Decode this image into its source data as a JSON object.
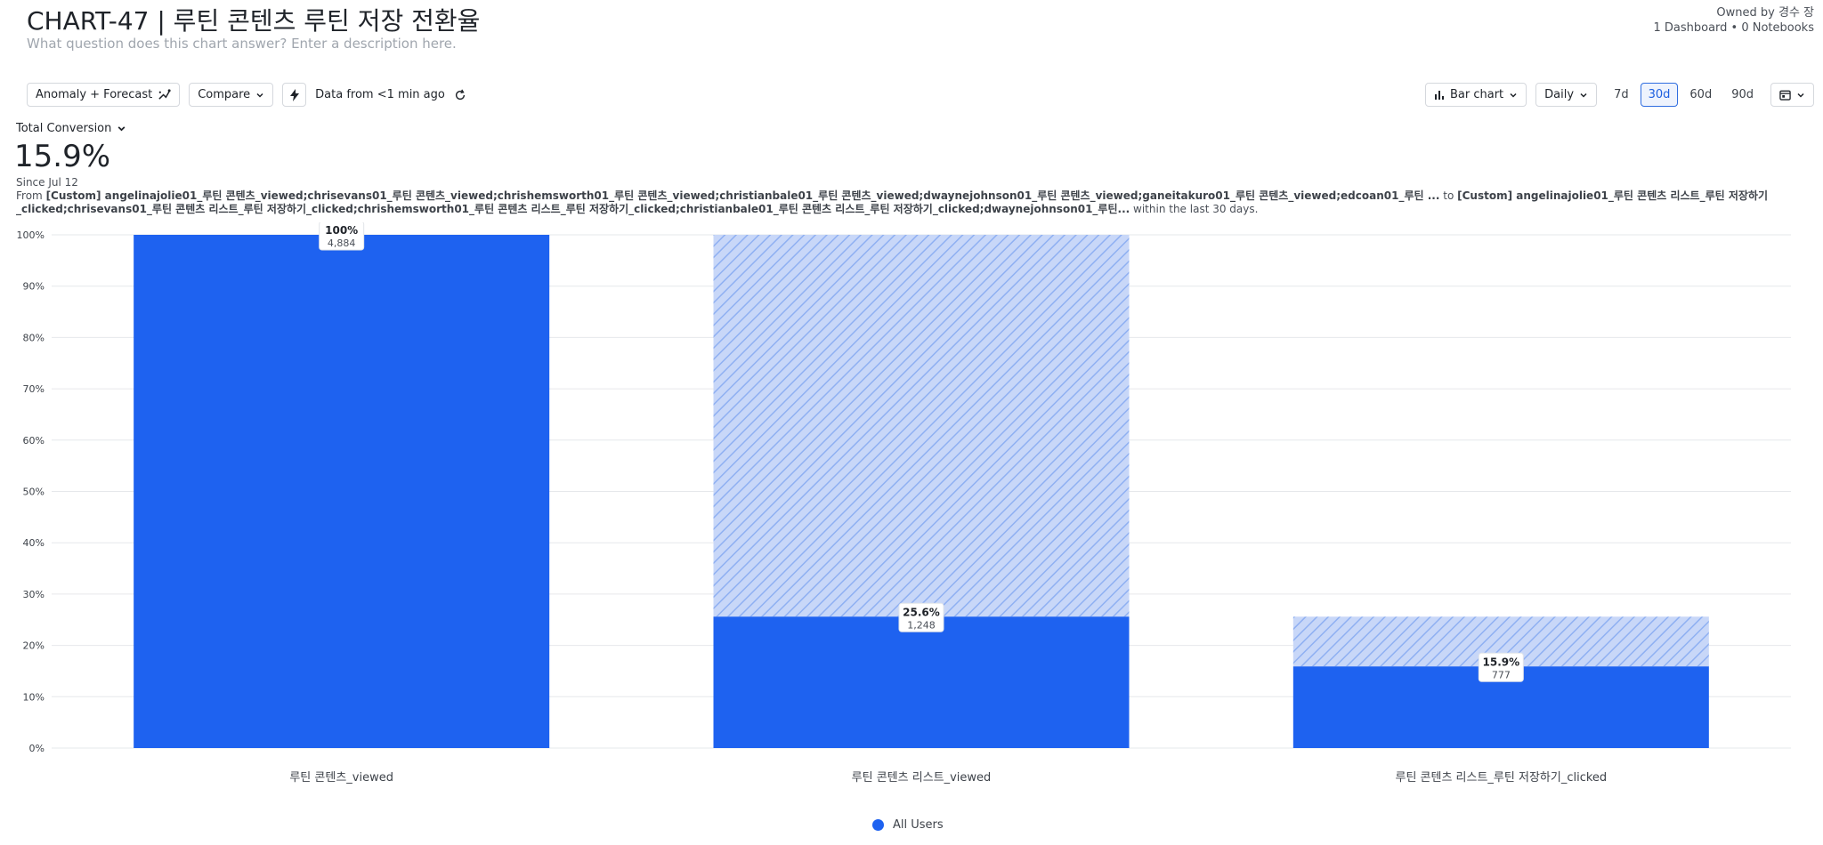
{
  "header": {
    "title": "CHART-47 | 루틴 콘텐츠 루틴 저장 전환율",
    "description_placeholder": "What question does this chart answer? Enter a description here.",
    "owner": "Owned by 경수 장",
    "usage": "1 Dashboard • 0 Notebooks"
  },
  "toolbar": {
    "anomaly_label": "Anomaly + Forecast",
    "compare_label": "Compare",
    "data_freshness": "Data from <1 min ago",
    "chart_type_label": "Bar chart",
    "interval_label": "Daily",
    "ranges": [
      "7d",
      "30d",
      "60d",
      "90d"
    ],
    "active_range": "30d"
  },
  "summary": {
    "metric_label": "Total Conversion",
    "value": "15.9%",
    "since": "Since Jul 12",
    "from_prefix": "From",
    "from_events": "[Custom] angelinajolie01_루틴 콘텐츠_viewed;chrisevans01_루틴 콘텐츠_viewed;chrishemsworth01_루틴 콘텐츠_viewed;christianbale01_루틴 콘텐츠_viewed;dwaynejohnson01_루틴 콘텐츠_viewed;ganeitakuro01_루틴 콘텐츠_viewed;edcoan01_루틴 ...",
    "to_word": "to",
    "to_events": "[Custom] angelinajolie01_루틴 콘텐츠 리스트_루틴 저장하기_clicked;chrisevans01_루틴 콘텐츠 리스트_루틴 저장하기_clicked;chrishemsworth01_루틴 콘텐츠 리스트_루틴 저장하기_clicked;christianbale01_루틴 콘텐츠 리스트_루틴 저장하기_clicked;dwaynejohnson01_루틴...",
    "suffix": "within the last 30 days."
  },
  "chart_data": {
    "type": "bar",
    "categories": [
      "루틴 콘텐츠_viewed",
      "루틴 콘텐츠 리스트_viewed",
      "루틴 콘텐츠 리스트_루틴 저장하기_clicked"
    ],
    "series": [
      {
        "name": "All Users",
        "values": [
          100,
          25.6,
          15.9
        ],
        "value_labels": [
          "100%",
          "25.6%",
          "15.9%"
        ],
        "counts": [
          "4,884",
          "1,248",
          "777"
        ],
        "dropoff_from_previous": [
          0,
          100,
          25.6
        ]
      }
    ],
    "yticks": [
      "0%",
      "10%",
      "20%",
      "30%",
      "40%",
      "50%",
      "60%",
      "70%",
      "80%",
      "90%",
      "100%"
    ],
    "ylim": [
      0,
      100
    ],
    "grid": true,
    "legend_position": "bottom-center",
    "colors": {
      "bar": "#1e62f0",
      "dropoff": "#c6d6f8",
      "dropoff_hatch": "#8fb0f2"
    }
  },
  "legend": {
    "label": "All Users"
  }
}
